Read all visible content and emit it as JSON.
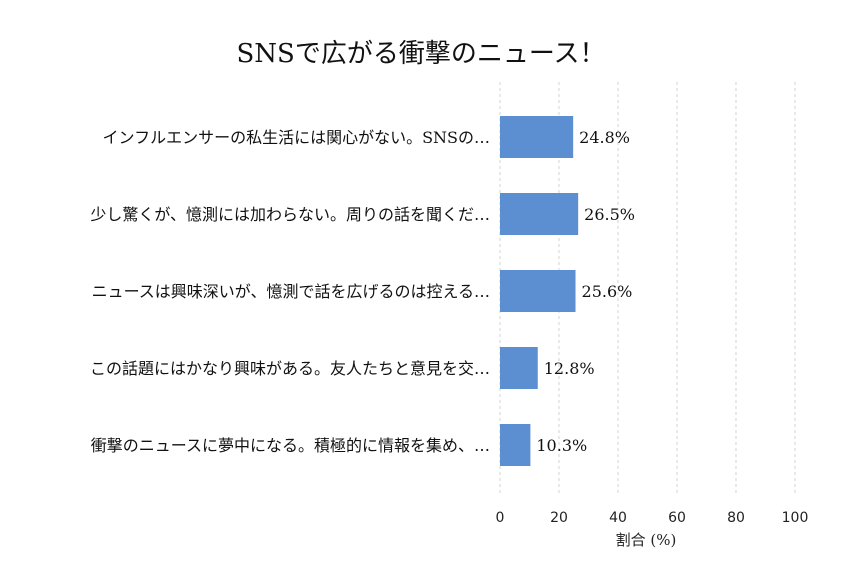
{
  "chart_data": {
    "type": "bar",
    "orientation": "horizontal",
    "title": "SNSで広がる衝撃のニュース！",
    "xlabel": "割合 (%)",
    "ylabel": "",
    "xlim": [
      0,
      100
    ],
    "xticks": [
      0,
      20,
      40,
      60,
      80,
      100
    ],
    "grid": true,
    "bar_color": "#5b8fd1",
    "categories": [
      "インフルエンサーの私生活には関心がない。SNSの…",
      "少し驚くが、憶測には加わらない。周りの話を聞くだ…",
      "ニュースは興味深いが、憶測で話を広げるのは控える…",
      "この話題にはかなり興味がある。友人たちと意見を交…",
      "衝撃のニュースに夢中になる。積極的に情報を集め、…"
    ],
    "values": [
      24.8,
      26.5,
      25.6,
      12.8,
      10.3
    ],
    "value_labels": [
      "24.8%",
      "26.5%",
      "25.6%",
      "12.8%",
      "10.3%"
    ]
  }
}
